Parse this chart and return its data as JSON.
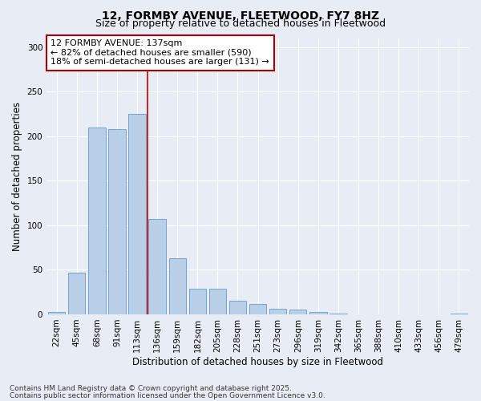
{
  "title1": "12, FORMBY AVENUE, FLEETWOOD, FY7 8HZ",
  "title2": "Size of property relative to detached houses in Fleetwood",
  "xlabel": "Distribution of detached houses by size in Fleetwood",
  "ylabel": "Number of detached properties",
  "bar_color": "#b8cfe8",
  "bar_edge_color": "#6699cc",
  "background_color": "#e8edf5",
  "grid_color": "#ffffff",
  "categories": [
    "22sqm",
    "45sqm",
    "68sqm",
    "91sqm",
    "113sqm",
    "136sqm",
    "159sqm",
    "182sqm",
    "205sqm",
    "228sqm",
    "251sqm",
    "273sqm",
    "296sqm",
    "319sqm",
    "342sqm",
    "365sqm",
    "388sqm",
    "410sqm",
    "433sqm",
    "456sqm",
    "479sqm"
  ],
  "values": [
    3,
    47,
    210,
    208,
    225,
    107,
    63,
    29,
    29,
    15,
    12,
    6,
    5,
    3,
    1,
    0,
    0,
    0,
    0,
    0,
    1
  ],
  "ylim": [
    0,
    310
  ],
  "yticks": [
    0,
    50,
    100,
    150,
    200,
    250,
    300
  ],
  "vline_index": 5,
  "vline_color": "#cc0000",
  "annotation_line1": "12 FORMBY AVENUE: 137sqm",
  "annotation_line2": "← 82% of detached houses are smaller (590)",
  "annotation_line3": "18% of semi-detached houses are larger (131) →",
  "annotation_box_color": "#ffffff",
  "annotation_box_edge_color": "#aa0000",
  "footer1": "Contains HM Land Registry data © Crown copyright and database right 2025.",
  "footer2": "Contains public sector information licensed under the Open Government Licence v3.0.",
  "title1_fontsize": 10,
  "title2_fontsize": 9,
  "xlabel_fontsize": 8.5,
  "ylabel_fontsize": 8.5,
  "tick_fontsize": 7.5,
  "annotation_fontsize": 8,
  "footer_fontsize": 6.5
}
